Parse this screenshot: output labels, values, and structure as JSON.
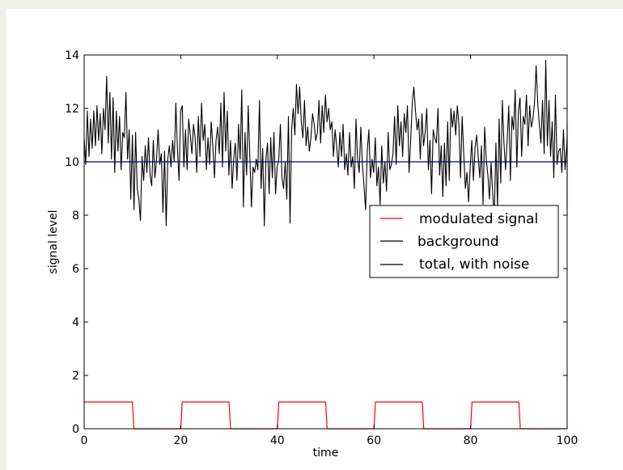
{
  "chart_data": {
    "type": "line",
    "xlabel": "time",
    "ylabel": "signal level",
    "xlim": [
      0,
      100
    ],
    "ylim": [
      0,
      14
    ],
    "x_ticks": [
      "0",
      "20",
      "40",
      "60",
      "80",
      "100"
    ],
    "y_ticks": [
      "0",
      "2",
      "4",
      "6",
      "8",
      "10",
      "12",
      "14"
    ],
    "grid": false,
    "legend_position": "center-right",
    "series": [
      {
        "name": "modulated signal",
        "color": "#ff0000",
        "x": [
          0,
          10,
          10.3,
          20,
          20.3,
          30,
          30.3,
          40,
          40.3,
          50,
          50.3,
          60,
          60.3,
          70,
          70.3,
          80,
          80.3,
          90,
          90.3,
          100
        ],
        "y": [
          1,
          1,
          0,
          0,
          1,
          1,
          0,
          0,
          1,
          1,
          0,
          0,
          1,
          1,
          0,
          0,
          1,
          1,
          0,
          0
        ]
      },
      {
        "name": "background",
        "color": "#000080",
        "x": [
          0,
          100
        ],
        "y": [
          10,
          10
        ]
      },
      {
        "name": "total, with noise",
        "color": "#000000",
        "x_start": 0,
        "x_step": 0.333,
        "y": [
          10.9,
          9.9,
          11.9,
          10.2,
          11.6,
          10.5,
          11.9,
          10.6,
          12.1,
          10.8,
          11.8,
          10.3,
          12.0,
          11.2,
          13.2,
          10.7,
          12.6,
          10.1,
          12.4,
          9.6,
          11.9,
          10.4,
          11.7,
          9.7,
          11.1,
          10.9,
          12.6,
          10.1,
          11.2,
          8.6,
          11.0,
          8.2,
          11.1,
          9.0,
          8.6,
          7.8,
          10.2,
          9.3,
          10.6,
          9.6,
          10.9,
          9.5,
          9.1,
          10.8,
          9.4,
          10.1,
          11.2,
          9.9,
          10.3,
          8.1,
          10.4,
          7.6,
          10.1,
          10.6,
          9.8,
          10.8,
          10.0,
          12.2,
          10.5,
          9.3,
          11.9,
          12.1,
          9.8,
          11.2,
          9.7,
          11.6,
          11.0,
          10.3,
          11.4,
          10.9,
          9.6,
          11.7,
          10.2,
          12.2,
          10.8,
          11.4,
          9.7,
          10.9,
          9.9,
          11.5,
          10.6,
          9.4,
          10.8,
          11.3,
          10.3,
          12.2,
          9.8,
          12.6,
          10.4,
          11.9,
          9.5,
          10.8,
          9.0,
          10.1,
          10.7,
          9.3,
          11.4,
          10.1,
          12.7,
          8.3,
          11.1,
          9.5,
          12.1,
          10.2,
          8.3,
          9.8,
          9.6,
          10.1,
          9.7,
          12.3,
          9.0,
          10.5,
          7.6,
          10.1,
          10.7,
          8.8,
          10.9,
          9.4,
          11.1,
          8.8,
          9.8,
          10.1,
          11.4,
          9.4,
          9.0,
          10.0,
          8.6,
          11.7,
          7.7,
          11.2,
          12.0,
          11.0,
          12.9,
          11.8,
          12.8,
          11.5,
          10.9,
          12.3,
          10.6,
          11.3,
          10.4,
          10.9,
          11.8,
          11.4,
          10.8,
          11.1,
          12.3,
          10.7,
          12.1,
          11.1,
          12.5,
          11.5,
          12.0,
          11.2,
          11.5,
          10.2,
          11.2,
          10.6,
          9.8,
          11.1,
          10.2,
          11.4,
          9.7,
          10.3,
          9.5,
          11.1,
          9.8,
          10.2,
          9.0,
          11.6,
          10.1,
          9.6,
          11.3,
          9.9,
          9.1,
          8.2,
          10.4,
          11.2,
          9.4,
          10.1,
          9.6,
          10.9,
          9.1,
          9.8,
          8.4,
          10.6,
          9.2,
          10.0,
          8.9,
          11.1,
          9.7,
          9.9,
          10.3,
          11.7,
          9.9,
          12.1,
          10.6,
          11.5,
          10.2,
          11.8,
          11.1,
          12.1,
          9.6,
          10.8,
          12.2,
          12.8,
          11.9,
          11.2,
          11.6,
          10.1,
          11.8,
          10.6,
          11.1,
          12.0,
          9.7,
          10.8,
          8.8,
          11.2,
          10.9,
          10.7,
          12.0,
          9.5,
          10.6,
          8.7,
          10.7,
          9.1,
          11.5,
          9.3,
          12.0,
          11.3,
          11.9,
          11.0,
          12.1,
          11.4,
          9.4,
          11.7,
          10.3,
          9.0,
          9.6,
          8.5,
          9.8,
          10.8,
          9.3,
          10.5,
          11.0,
          10.2,
          9.4,
          10.6,
          8.4,
          11.3,
          10.1,
          9.5,
          8.6,
          10.0,
          8.8,
          8.0,
          10.7,
          8.3,
          11.6,
          9.2,
          12.3,
          10.7,
          9.7,
          10.8,
          12.1,
          9.3,
          11.7,
          11.2,
          12.7,
          9.8,
          11.9,
          12.4,
          10.2,
          11.7,
          11.4,
          12.5,
          10.6,
          12.1,
          11.3,
          11.6,
          12.2,
          13.6,
          12.2,
          11.4,
          10.7,
          12.3,
          10.3,
          13.8,
          10.6,
          12.3,
          10.2,
          11.5,
          9.4,
          12.5,
          9.9,
          10.4,
          10.5,
          9.6,
          11.2,
          9.7,
          10.6,
          11.0,
          9.0,
          10.9,
          9.5,
          10.7,
          9.9,
          11.4,
          10.6,
          9.3,
          10.2,
          10.4,
          9.0,
          10.6,
          8.2,
          11.5,
          9.6,
          10.9,
          9.6,
          9.2
        ]
      }
    ]
  }
}
